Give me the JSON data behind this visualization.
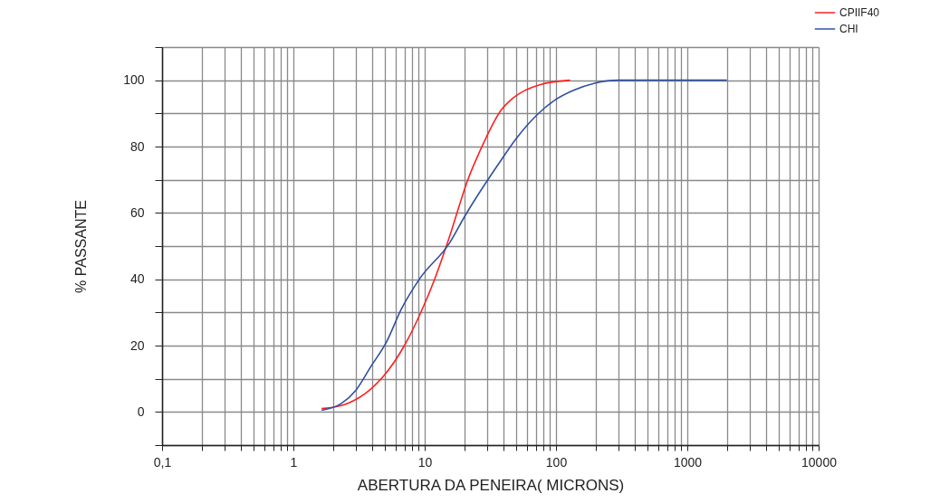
{
  "chart_data": {
    "type": "line",
    "xlabel": "ABERTURA DA PENEIRA( MICRONS)",
    "ylabel": "% PASSANTE",
    "log": "x",
    "grid": true,
    "legend": "top right",
    "line_style": "solid",
    "marker": "none",
    "xlim": [
      0.1,
      10000
    ],
    "ylim": [
      -10,
      110
    ],
    "xticks": [
      {
        "value": 0.1,
        "label": "0,1"
      },
      {
        "value": 0.2,
        "label": null
      },
      {
        "value": 0.3,
        "label": null
      },
      {
        "value": 0.4,
        "label": null
      },
      {
        "value": 0.5,
        "label": null
      },
      {
        "value": 0.6,
        "label": null
      },
      {
        "value": 0.7,
        "label": null
      },
      {
        "value": 0.8,
        "label": null
      },
      {
        "value": 0.9,
        "label": null
      },
      1,
      {
        "value": 2,
        "label": null
      },
      {
        "value": 3,
        "label": null
      },
      {
        "value": 4,
        "label": null
      },
      {
        "value": 5,
        "label": null
      },
      {
        "value": 6,
        "label": null
      },
      {
        "value": 7,
        "label": null
      },
      {
        "value": 8,
        "label": null
      },
      {
        "value": 9,
        "label": null
      },
      10,
      {
        "value": 20,
        "label": null
      },
      {
        "value": 30,
        "label": null
      },
      {
        "value": 40,
        "label": null
      },
      {
        "value": 50,
        "label": null
      },
      {
        "value": 60,
        "label": null
      },
      {
        "value": 70,
        "label": null
      },
      {
        "value": 80,
        "label": null
      },
      {
        "value": 90,
        "label": null
      },
      100,
      {
        "value": 200,
        "label": null
      },
      {
        "value": 300,
        "label": null
      },
      {
        "value": 400,
        "label": null
      },
      {
        "value": 500,
        "label": null
      },
      {
        "value": 600,
        "label": null
      },
      {
        "value": 700,
        "label": null
      },
      {
        "value": 800,
        "label": null
      },
      {
        "value": 900,
        "label": null
      },
      1000,
      {
        "value": 2000,
        "label": null
      },
      {
        "value": 3000,
        "label": null
      },
      {
        "value": 4000,
        "label": null
      },
      {
        "value": 5000,
        "label": null
      },
      {
        "value": 6000,
        "label": null
      },
      {
        "value": 7000,
        "label": null
      },
      {
        "value": 8000,
        "label": null
      },
      {
        "value": 9000,
        "label": null
      },
      10000
    ],
    "yticks": [
      {
        "value": -10,
        "label": null
      },
      0,
      {
        "value": 10,
        "label": null
      },
      20,
      {
        "value": 30,
        "label": null
      },
      40,
      {
        "value": 50,
        "label": null
      },
      60,
      {
        "value": 70,
        "label": null
      },
      80,
      {
        "value": 90,
        "label": null
      },
      100,
      {
        "value": 110,
        "label": null
      }
    ],
    "series": [
      {
        "name": "CPIIF40",
        "color": "#ff2020",
        "x": [
          1.64,
          2.56,
          3.92,
          4.84,
          7.0,
          9.1,
          11.9,
          15.5,
          21.3,
          26.3,
          38.2,
          47,
          76,
          128
        ],
        "values": [
          1,
          2.5,
          7,
          10.7,
          20,
          29,
          40,
          53,
          70,
          78.6,
          91,
          94.6,
          98.7,
          100
        ]
      },
      {
        "name": "CHI",
        "color": "#3050a0",
        "x": [
          1.64,
          2.31,
          3.0,
          3.92,
          5.1,
          6.64,
          9.1,
          15.5,
          20.2,
          38.2,
          49.6,
          71.9,
          98,
          135,
          197,
          301,
          2000
        ],
        "values": [
          0.5,
          2.5,
          6.6,
          13.9,
          21,
          31,
          40,
          51,
          59,
          75.9,
          82.3,
          89.6,
          94,
          96.9,
          99.1,
          100,
          100
        ]
      }
    ]
  }
}
